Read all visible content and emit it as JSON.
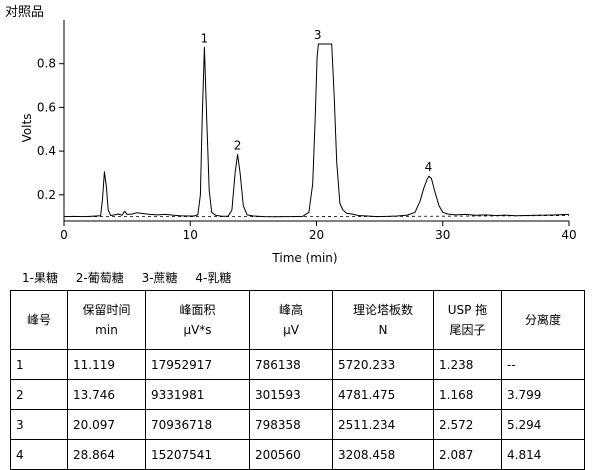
{
  "chart_data": {
    "type": "line",
    "title": "对照品",
    "xlabel": "Time (min)",
    "ylabel": "Volts",
    "xlim": [
      0,
      40
    ],
    "ylim": [
      0.08,
      1.0
    ],
    "x_ticks": [
      0,
      10,
      20,
      30,
      40
    ],
    "y_ticks": [
      0.2,
      0.4,
      0.6,
      0.8
    ],
    "grid": false,
    "series": [
      {
        "style": "solid",
        "x": [
          0,
          0.8,
          1.5,
          2.2,
          2.9,
          3.05,
          3.2,
          3.35,
          3.5,
          3.7,
          4.0,
          4.3,
          4.6,
          4.8,
          5.0,
          5.4,
          5.8,
          6.3,
          6.8,
          7.4,
          8.0,
          8.6,
          9.2,
          9.8,
          10.3,
          10.6,
          10.8,
          10.95,
          11.12,
          11.3,
          11.5,
          11.7,
          12.0,
          12.5,
          13.0,
          13.3,
          13.55,
          13.75,
          13.95,
          14.2,
          14.5,
          15.0,
          15.8,
          16.6,
          17.4,
          18.2,
          18.9,
          19.4,
          19.7,
          19.9,
          20.05,
          20.15,
          20.3,
          21.2,
          21.4,
          21.6,
          21.85,
          22.1,
          22.4,
          22.8,
          23.3,
          24.0,
          24.8,
          25.6,
          26.4,
          27.2,
          27.8,
          28.2,
          28.5,
          28.75,
          28.9,
          29.1,
          29.35,
          29.7,
          30.0,
          30.4,
          31.0,
          31.8,
          32.6,
          33.4,
          34.2,
          35.0,
          35.8,
          36.6,
          37.4,
          38.2,
          39.0,
          40.0
        ],
        "y": [
          0.1,
          0.101,
          0.1,
          0.102,
          0.104,
          0.18,
          0.305,
          0.24,
          0.13,
          0.105,
          0.108,
          0.112,
          0.106,
          0.125,
          0.11,
          0.112,
          0.118,
          0.114,
          0.11,
          0.108,
          0.11,
          0.107,
          0.104,
          0.103,
          0.103,
          0.108,
          0.2,
          0.55,
          0.875,
          0.55,
          0.22,
          0.12,
          0.106,
          0.102,
          0.102,
          0.13,
          0.3,
          0.385,
          0.3,
          0.15,
          0.108,
          0.103,
          0.1,
          0.099,
          0.1,
          0.1,
          0.101,
          0.12,
          0.25,
          0.55,
          0.83,
          0.89,
          0.89,
          0.89,
          0.65,
          0.35,
          0.16,
          0.13,
          0.115,
          0.112,
          0.105,
          0.103,
          0.1,
          0.101,
          0.103,
          0.107,
          0.12,
          0.17,
          0.23,
          0.27,
          0.285,
          0.275,
          0.22,
          0.15,
          0.12,
          0.112,
          0.108,
          0.11,
          0.106,
          0.108,
          0.105,
          0.107,
          0.104,
          0.105,
          0.106,
          0.107,
          0.108,
          0.11
        ]
      },
      {
        "style": "dashed",
        "x": [
          0,
          10,
          20,
          30,
          40
        ],
        "y": [
          0.1,
          0.1,
          0.1,
          0.102,
          0.105
        ]
      }
    ],
    "peak_labels": [
      {
        "text": "1",
        "x": 11.119,
        "y": 0.875
      },
      {
        "text": "2",
        "x": 13.746,
        "y": 0.385
      },
      {
        "text": "3",
        "x": 20.097,
        "y": 0.89
      },
      {
        "text": "4",
        "x": 28.864,
        "y": 0.285
      }
    ]
  },
  "legend": [
    "1-果糖",
    "2-葡萄糖",
    "3-蔗糖",
    "4-乳糖"
  ],
  "table": {
    "headers": [
      [
        "峰号"
      ],
      [
        "保留时间",
        "min"
      ],
      [
        "峰面积",
        "μV*s"
      ],
      [
        "峰高",
        "μV"
      ],
      [
        "理论塔板数",
        "N"
      ],
      [
        "USP 拖",
        "尾因子"
      ],
      [
        "分离度"
      ]
    ],
    "rows": [
      [
        "1",
        "11.119",
        "17952917",
        "786138",
        "5720.233",
        "1.238",
        "--"
      ],
      [
        "2",
        "13.746",
        "9331981",
        "301593",
        "4781.475",
        "1.168",
        "3.799"
      ],
      [
        "3",
        "20.097",
        "70936718",
        "798358",
        "2511.234",
        "2.572",
        "5.294"
      ],
      [
        "4",
        "28.864",
        "15207541",
        "200560",
        "3208.458",
        "2.087",
        "4.814"
      ]
    ]
  }
}
